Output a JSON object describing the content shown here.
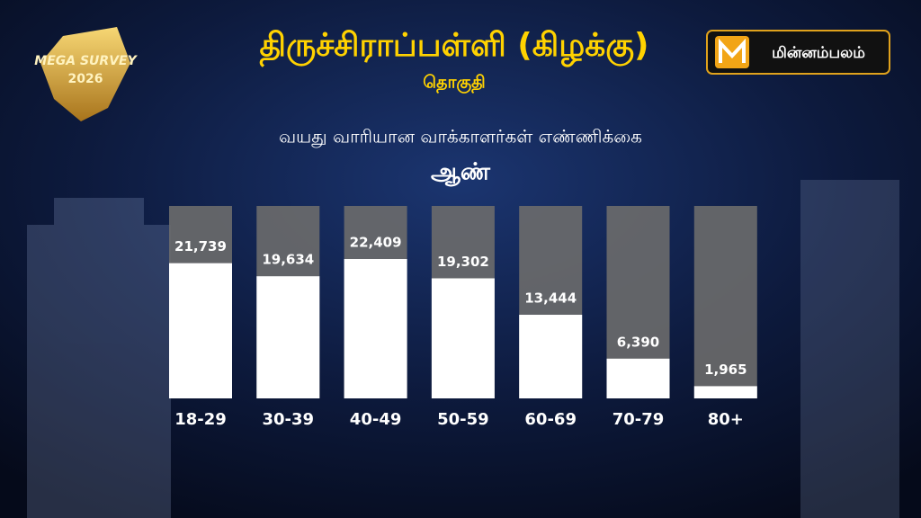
{
  "chart_data": {
    "type": "bar",
    "title": "திருச்சிராப்பள்ளி (கிழக்கு)",
    "subtitle": "தொகுதி",
    "heading": "வயது வாரியான வாக்காளர்கள் எண்ணிக்கை",
    "series_label": "ஆண்",
    "categories": [
      "18-29",
      "30-39",
      "40-49",
      "50-59",
      "60-69",
      "70-79",
      "80+"
    ],
    "values": [
      21739,
      19634,
      22409,
      19302,
      13444,
      6390,
      1965
    ],
    "value_labels": [
      "21,739",
      "19,634",
      "22,409",
      "19,302",
      "13,444",
      "6,390",
      "1,965"
    ],
    "color": "#ffffff"
  },
  "branding": {
    "badge_top": "MEGA SURVEY",
    "badge_year": "2026",
    "logo": "மின்னம்பலம்"
  }
}
